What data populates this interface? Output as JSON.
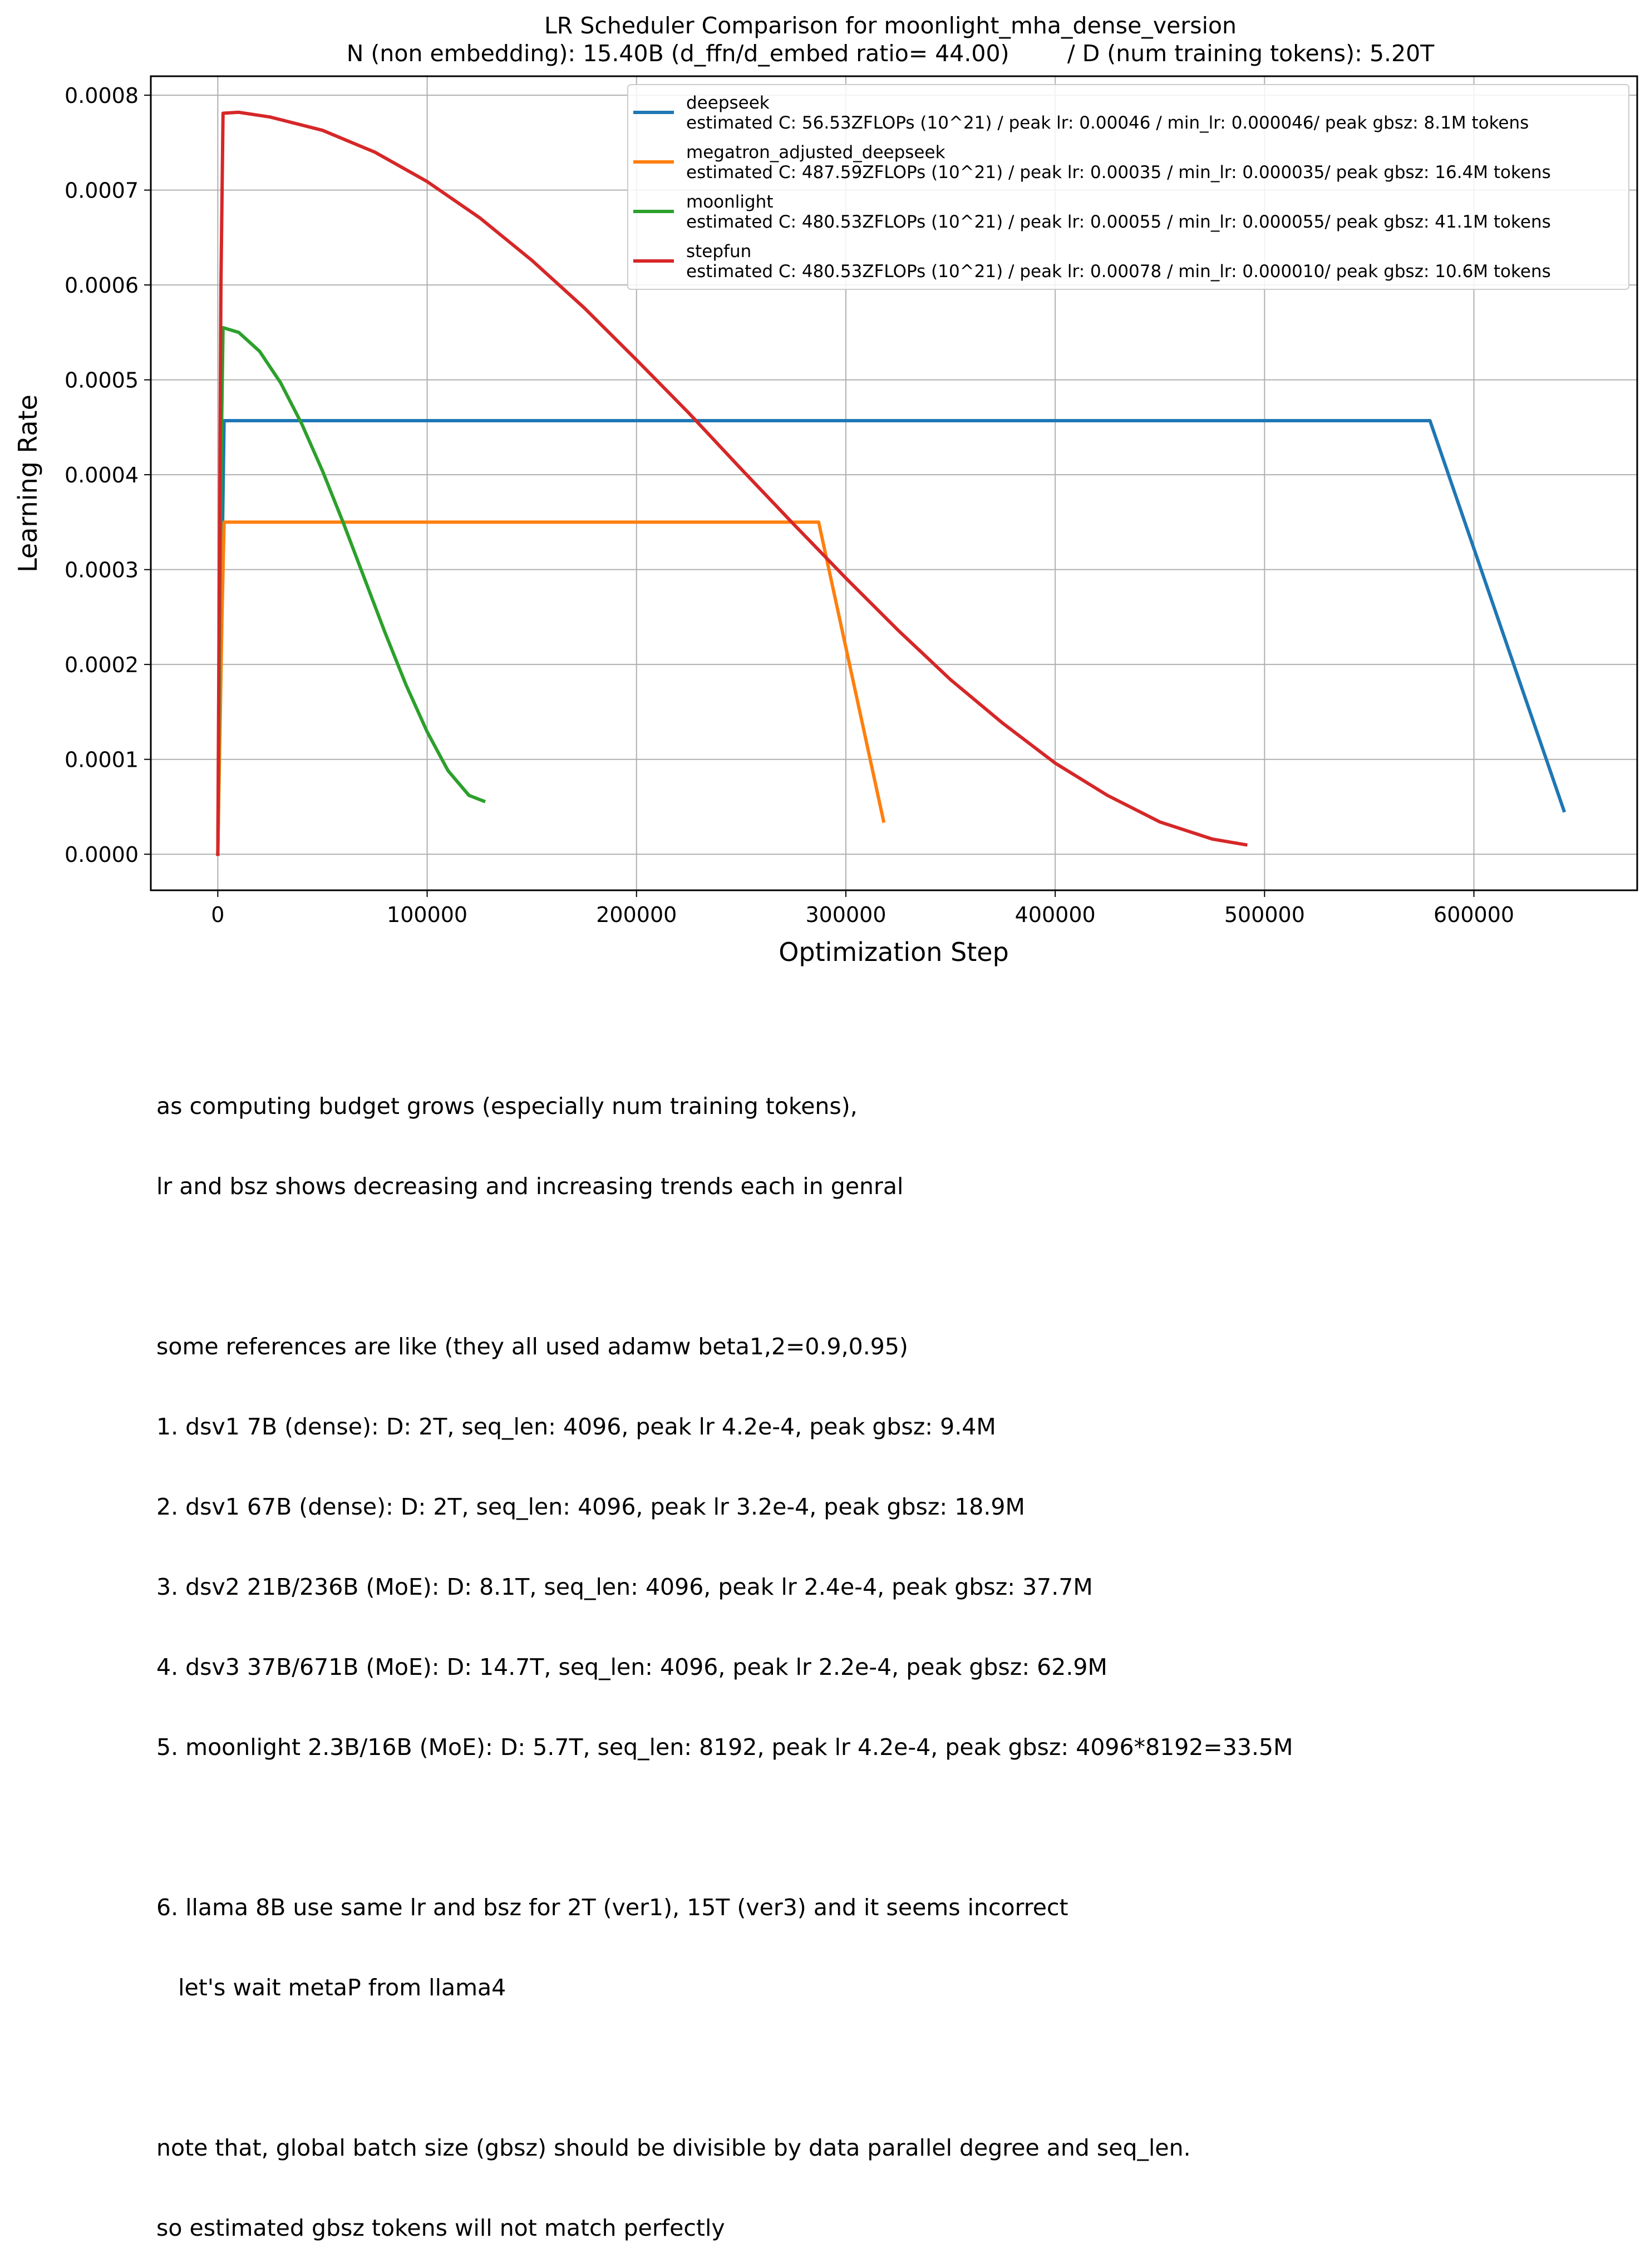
{
  "chart_data": {
    "type": "line",
    "title": "LR Scheduler Comparison for moonlight_mha_dense_version",
    "subtitle": "N (non embedding): 15.40B (d_ffn/d_embed ratio= 44.00)        / D (num training tokens): 5.20T",
    "xlabel": "Optimization Step",
    "ylabel": "Learning Rate",
    "xlim": [
      -32000,
      678000
    ],
    "ylim": [
      -3.8e-05,
      0.00082
    ],
    "xticks": [
      0,
      100000,
      200000,
      300000,
      400000,
      500000,
      600000
    ],
    "xtick_labels": [
      "0",
      "100000",
      "200000",
      "300000",
      "400000",
      "500000",
      "600000"
    ],
    "yticks": [
      0,
      0.0001,
      0.0002,
      0.0003,
      0.0004,
      0.0005,
      0.0006,
      0.0007,
      0.0008
    ],
    "ytick_labels": [
      "0.0000",
      "0.0001",
      "0.0002",
      "0.0003",
      "0.0004",
      "0.0005",
      "0.0006",
      "0.0007",
      "0.0008"
    ],
    "grid": true,
    "legend_position": "top-right",
    "series": [
      {
        "name": "deepseek",
        "detail": "estimated C: 56.53ZFLOPs (10^21) / peak lr: 0.00046 / min_lr: 0.000046/ peak gbsz: 8.1M tokens",
        "color": "#1f77b4",
        "x": [
          0,
          2000,
          3000,
          579000,
          643000
        ],
        "y": [
          0,
          0.0003,
          0.000457,
          0.000457,
          4.6e-05
        ]
      },
      {
        "name": "megatron_adjusted_deepseek",
        "detail": "estimated C: 487.59ZFLOPs (10^21) / peak lr: 0.00035 / min_lr: 0.000035/ peak gbsz: 16.4M tokens",
        "color": "#ff7f0e",
        "x": [
          0,
          2000,
          3000,
          287000,
          318000
        ],
        "y": [
          0,
          0.00025,
          0.00035,
          0.00035,
          3.5e-05
        ]
      },
      {
        "name": "moonlight",
        "detail": "estimated C: 480.53ZFLOPs (10^21) / peak lr: 0.00055 / min_lr: 0.000055/ peak gbsz: 41.1M tokens",
        "color": "#2ca02c",
        "x": [
          0,
          1500,
          2500,
          10000,
          20000,
          30000,
          40000,
          50000,
          60000,
          70000,
          80000,
          90000,
          100000,
          110000,
          120000,
          127000
        ],
        "y": [
          0,
          0.0004,
          0.000555,
          0.00055,
          0.00053,
          0.000497,
          0.000454,
          0.000404,
          0.000349,
          0.000291,
          0.000233,
          0.000178,
          0.000129,
          8.8e-05,
          6.2e-05,
          5.6e-05
        ]
      },
      {
        "name": "stepfun",
        "detail": "estimated C: 480.53ZFLOPs (10^21) / peak lr: 0.00078 / min_lr: 0.000010/ peak gbsz: 10.6M tokens",
        "color": "#d62728",
        "x": [
          0,
          1500,
          2500,
          10000,
          25000,
          50000,
          75000,
          100000,
          125000,
          150000,
          175000,
          200000,
          225000,
          250000,
          275000,
          300000,
          325000,
          350000,
          375000,
          400000,
          425000,
          450000,
          475000,
          491000
        ],
        "y": [
          0,
          0.0006,
          0.000781,
          0.000782,
          0.000777,
          0.000763,
          0.00074,
          0.000709,
          0.000671,
          0.000626,
          0.000576,
          0.000521,
          0.000465,
          0.000406,
          0.000348,
          0.000291,
          0.000236,
          0.000184,
          0.000138,
          9.6e-05,
          6.2e-05,
          3.4e-05,
          1.6e-05,
          1e-05
        ]
      }
    ]
  },
  "notes": {
    "line1": "as computing budget grows (especially num training tokens),",
    "line2": "lr and bsz shows decreasing and increasing trends each in genral",
    "line3": "some references are like (they all used adamw beta1,2=0.9,0.95)",
    "line4": "1. dsv1 7B (dense): D: 2T, seq_len: 4096, peak lr 4.2e-4, peak gbsz: 9.4M",
    "line5": "2. dsv1 67B (dense): D: 2T, seq_len: 4096, peak lr 3.2e-4, peak gbsz: 18.9M",
    "line6": "3. dsv2 21B/236B (MoE): D: 8.1T, seq_len: 4096, peak lr 2.4e-4, peak gbsz: 37.7M",
    "line7": "4. dsv3 37B/671B (MoE): D: 14.7T, seq_len: 4096, peak lr 2.2e-4, peak gbsz: 62.9M",
    "line8": "5. moonlight 2.3B/16B (MoE): D: 5.7T, seq_len: 8192, peak lr 4.2e-4, peak gbsz: 4096*8192=33.5M",
    "line9": "6. llama 8B use same lr and bsz for 2T (ver1), 15T (ver3) and it seems incorrect",
    "line10": "   let's wait metaP from llama4",
    "line11": "note that, global batch size (gbsz) should be divisible by data parallel degree and seq_len.",
    "line12": "so estimated gbsz tokens will not match perfectly"
  }
}
